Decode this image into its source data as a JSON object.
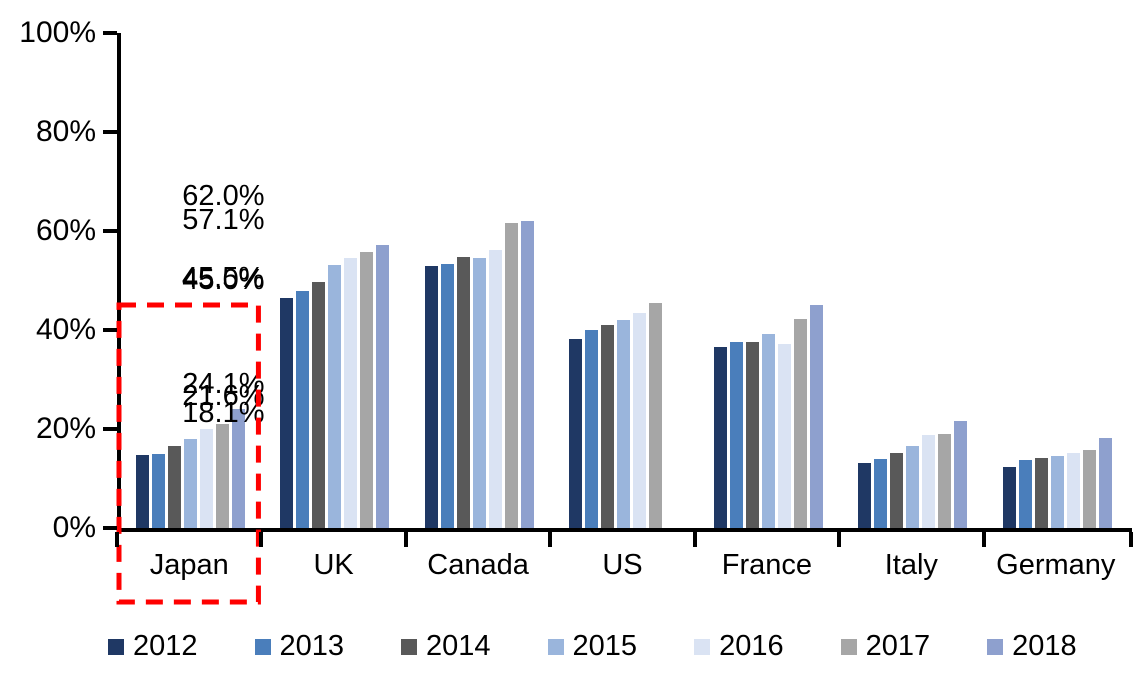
{
  "chart_data": {
    "type": "bar",
    "title": "",
    "xlabel": "",
    "ylabel": "",
    "categories": [
      "Japan",
      "UK",
      "Canada",
      "US",
      "France",
      "Italy",
      "Germany"
    ],
    "series": [
      {
        "name": "2012",
        "color": "#1F3864",
        "values": [
          14.8,
          46.4,
          53.0,
          38.1,
          36.5,
          13.2,
          12.4
        ]
      },
      {
        "name": "2013",
        "color": "#4A7EBB",
        "values": [
          15.0,
          47.8,
          53.4,
          40.0,
          37.6,
          14.0,
          13.8
        ]
      },
      {
        "name": "2014",
        "color": "#595959",
        "values": [
          16.5,
          49.8,
          54.8,
          41.0,
          37.6,
          15.1,
          14.2
        ]
      },
      {
        "name": "2015",
        "color": "#9AB5DC",
        "values": [
          18.0,
          53.2,
          54.5,
          42.0,
          39.2,
          16.6,
          14.6
        ]
      },
      {
        "name": "2016",
        "color": "#DAE3F3",
        "values": [
          20.0,
          54.6,
          56.1,
          43.5,
          37.2,
          18.8,
          15.2
        ]
      },
      {
        "name": "2017",
        "color": "#A6A6A6",
        "values": [
          21.0,
          55.7,
          61.6,
          45.5,
          42.3,
          19.0,
          15.7
        ]
      },
      {
        "name": "2018",
        "color": "#8EA0CE",
        "values": [
          24.1,
          57.1,
          62.0,
          null,
          45.0,
          21.6,
          18.1
        ]
      }
    ],
    "group_value_labels": [
      "24.1%",
      "57.1%",
      "62.0%",
      "45.5%",
      "45.0%",
      "21.6%",
      "18.1%"
    ],
    "y_ticks": [
      {
        "value": 0,
        "label": "0%"
      },
      {
        "value": 20,
        "label": "20%"
      },
      {
        "value": 40,
        "label": "40%"
      },
      {
        "value": 60,
        "label": "60%"
      },
      {
        "value": 80,
        "label": "80%"
      },
      {
        "value": 100,
        "label": "100%"
      }
    ],
    "ylim": [
      0,
      100
    ],
    "grid": false,
    "legend_position": "bottom",
    "legend_entries": [
      "2012",
      "2013",
      "2014",
      "2015",
      "2016",
      "2017",
      "2018"
    ],
    "annotations": [
      {
        "type": "dashed-box",
        "target_category": "Japan",
        "color": "#FF0000"
      }
    ]
  }
}
